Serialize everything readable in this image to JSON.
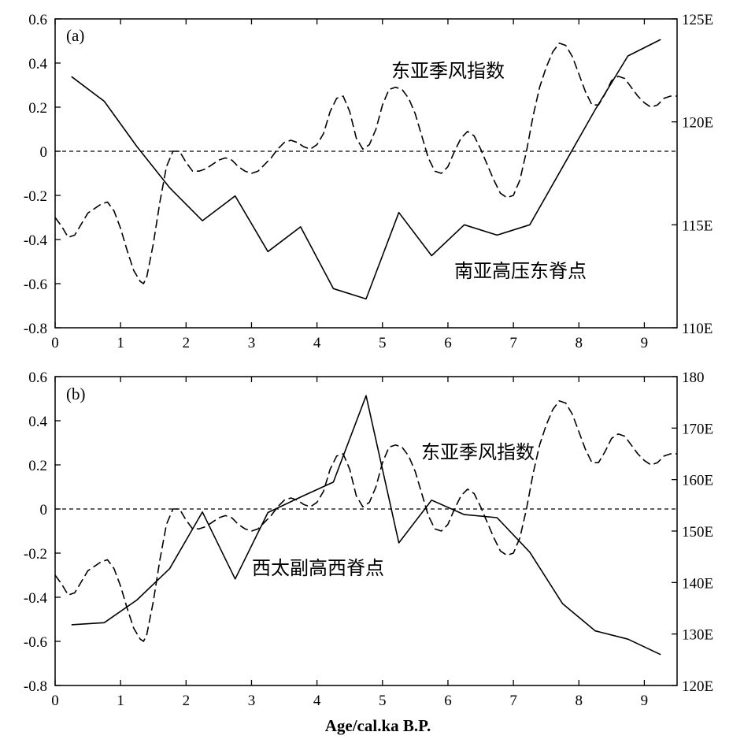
{
  "chart_data": [
    {
      "type": "line",
      "panel_label": "(a)",
      "x_ticks": [
        "0",
        "1",
        "2",
        "3",
        "4",
        "5",
        "6",
        "7",
        "8",
        "9"
      ],
      "xlim": [
        0,
        9.5
      ],
      "y_left_ticks": [
        "0.6",
        "0.4",
        "0.2",
        "0",
        "-0.2",
        "-0.4",
        "-0.6",
        "-0.8"
      ],
      "ylim_left": [
        -0.8,
        0.6
      ],
      "y_right_ticks": [
        "125E",
        "120E",
        "115E",
        "110E"
      ],
      "ylim_right": [
        110,
        125
      ],
      "zero_line": "dashed",
      "series": [
        {
          "name": "东亚季风指数",
          "axis": "left",
          "style": "dashed",
          "x": [
            0.0,
            0.1,
            0.2,
            0.3,
            0.4,
            0.5,
            0.6,
            0.7,
            0.8,
            0.9,
            1.0,
            1.1,
            1.2,
            1.3,
            1.35,
            1.4,
            1.5,
            1.6,
            1.7,
            1.8,
            1.9,
            2.0,
            2.1,
            2.2,
            2.3,
            2.4,
            2.5,
            2.6,
            2.7,
            2.8,
            2.9,
            3.0,
            3.1,
            3.2,
            3.3,
            3.4,
            3.5,
            3.6,
            3.7,
            3.8,
            3.9,
            4.0,
            4.1,
            4.2,
            4.3,
            4.4,
            4.5,
            4.6,
            4.7,
            4.8,
            4.9,
            5.0,
            5.1,
            5.2,
            5.3,
            5.4,
            5.5,
            5.6,
            5.7,
            5.8,
            5.9,
            6.0,
            6.1,
            6.2,
            6.3,
            6.4,
            6.5,
            6.6,
            6.7,
            6.8,
            6.9,
            7.0,
            7.1,
            7.2,
            7.3,
            7.4,
            7.5,
            7.6,
            7.7,
            7.8,
            7.9,
            8.0,
            8.1,
            8.2,
            8.3,
            8.4,
            8.5,
            8.6,
            8.7,
            8.8,
            8.9,
            9.0,
            9.1,
            9.2,
            9.3,
            9.4,
            9.5
          ],
          "y": [
            -0.3,
            -0.34,
            -0.39,
            -0.38,
            -0.33,
            -0.28,
            -0.26,
            -0.24,
            -0.23,
            -0.27,
            -0.35,
            -0.45,
            -0.54,
            -0.59,
            -0.6,
            -0.57,
            -0.42,
            -0.23,
            -0.07,
            0.0,
            0.0,
            -0.05,
            -0.09,
            -0.09,
            -0.08,
            -0.06,
            -0.04,
            -0.03,
            -0.04,
            -0.07,
            -0.09,
            -0.1,
            -0.09,
            -0.06,
            -0.03,
            0.01,
            0.04,
            0.05,
            0.04,
            0.02,
            0.01,
            0.03,
            0.08,
            0.18,
            0.24,
            0.25,
            0.18,
            0.06,
            0.01,
            0.03,
            0.1,
            0.21,
            0.28,
            0.29,
            0.28,
            0.24,
            0.17,
            0.07,
            -0.03,
            -0.09,
            -0.1,
            -0.07,
            0.0,
            0.06,
            0.09,
            0.07,
            0.01,
            -0.06,
            -0.13,
            -0.19,
            -0.21,
            -0.2,
            -0.13,
            0.0,
            0.16,
            0.29,
            0.38,
            0.45,
            0.49,
            0.48,
            0.43,
            0.35,
            0.27,
            0.21,
            0.21,
            0.26,
            0.32,
            0.34,
            0.33,
            0.29,
            0.25,
            0.22,
            0.2,
            0.21,
            0.24,
            0.25,
            0.25
          ]
        },
        {
          "name": "南亚高压东脊点",
          "axis": "right",
          "style": "solid",
          "x": [
            0.25,
            0.75,
            1.25,
            1.75,
            2.25,
            2.75,
            3.25,
            3.75,
            4.25,
            4.75,
            5.25,
            5.75,
            6.25,
            6.75,
            7.25,
            7.75,
            8.25,
            8.75,
            9.25
          ],
          "y": [
            122.2,
            121.0,
            118.8,
            116.8,
            115.2,
            116.4,
            113.7,
            114.9,
            111.9,
            111.4,
            115.6,
            113.5,
            115.0,
            114.5,
            115.0,
            117.8,
            120.6,
            123.2,
            124.0
          ]
        }
      ]
    },
    {
      "type": "line",
      "panel_label": "(b)",
      "x_ticks": [
        "0",
        "1",
        "2",
        "3",
        "4",
        "5",
        "6",
        "7",
        "8",
        "9"
      ],
      "xlim": [
        0,
        9.5
      ],
      "y_left_ticks": [
        "0.6",
        "0.4",
        "0.2",
        "0",
        "-0.2",
        "-0.4",
        "-0.6",
        "-0.8"
      ],
      "ylim_left": [
        -0.8,
        0.6
      ],
      "y_right_ticks": [
        "180",
        "170E",
        "160E",
        "150E",
        "140E",
        "130E",
        "120E"
      ],
      "ylim_right": [
        120,
        180
      ],
      "zero_line": "dashed",
      "xlabel": "Age/cal.ka B.P.",
      "series": [
        {
          "name": "东亚季风指数",
          "axis": "left",
          "style": "dashed",
          "x": [
            0.0,
            0.1,
            0.2,
            0.3,
            0.4,
            0.5,
            0.6,
            0.7,
            0.8,
            0.9,
            1.0,
            1.1,
            1.2,
            1.3,
            1.35,
            1.4,
            1.5,
            1.6,
            1.7,
            1.8,
            1.9,
            2.0,
            2.1,
            2.2,
            2.3,
            2.4,
            2.5,
            2.6,
            2.7,
            2.8,
            2.9,
            3.0,
            3.1,
            3.2,
            3.3,
            3.4,
            3.5,
            3.6,
            3.7,
            3.8,
            3.9,
            4.0,
            4.1,
            4.2,
            4.3,
            4.4,
            4.5,
            4.6,
            4.7,
            4.8,
            4.9,
            5.0,
            5.1,
            5.2,
            5.3,
            5.4,
            5.5,
            5.6,
            5.7,
            5.8,
            5.9,
            6.0,
            6.1,
            6.2,
            6.3,
            6.4,
            6.5,
            6.6,
            6.7,
            6.8,
            6.9,
            7.0,
            7.1,
            7.2,
            7.3,
            7.4,
            7.5,
            7.6,
            7.7,
            7.8,
            7.9,
            8.0,
            8.1,
            8.2,
            8.3,
            8.4,
            8.5,
            8.6,
            8.7,
            8.8,
            8.9,
            9.0,
            9.1,
            9.2,
            9.3,
            9.4,
            9.5
          ],
          "y": [
            -0.3,
            -0.34,
            -0.39,
            -0.38,
            -0.33,
            -0.28,
            -0.26,
            -0.24,
            -0.23,
            -0.27,
            -0.35,
            -0.45,
            -0.54,
            -0.59,
            -0.6,
            -0.57,
            -0.42,
            -0.23,
            -0.07,
            0.0,
            0.0,
            -0.05,
            -0.09,
            -0.09,
            -0.08,
            -0.06,
            -0.04,
            -0.03,
            -0.04,
            -0.07,
            -0.09,
            -0.1,
            -0.09,
            -0.06,
            -0.03,
            0.01,
            0.04,
            0.05,
            0.04,
            0.02,
            0.01,
            0.03,
            0.08,
            0.18,
            0.24,
            0.25,
            0.18,
            0.06,
            0.01,
            0.03,
            0.1,
            0.21,
            0.28,
            0.29,
            0.28,
            0.24,
            0.17,
            0.07,
            -0.03,
            -0.09,
            -0.1,
            -0.07,
            0.0,
            0.06,
            0.09,
            0.07,
            0.01,
            -0.06,
            -0.13,
            -0.19,
            -0.21,
            -0.2,
            -0.13,
            0.0,
            0.16,
            0.29,
            0.38,
            0.45,
            0.49,
            0.48,
            0.43,
            0.35,
            0.27,
            0.21,
            0.21,
            0.26,
            0.32,
            0.34,
            0.33,
            0.29,
            0.25,
            0.22,
            0.2,
            0.21,
            0.24,
            0.25,
            0.25
          ]
        },
        {
          "name": "西太副高西脊点",
          "axis": "right",
          "style": "solid",
          "x": [
            0.25,
            0.75,
            1.25,
            1.75,
            2.25,
            2.75,
            3.25,
            3.75,
            4.25,
            4.75,
            5.25,
            5.75,
            6.25,
            6.75,
            7.25,
            7.75,
            8.25,
            8.75,
            9.25
          ],
          "y": [
            131.8,
            132.2,
            136.6,
            142.7,
            153.7,
            140.7,
            153.6,
            156.6,
            159.5,
            176.3,
            147.7,
            156.0,
            153.2,
            152.6,
            145.9,
            135.9,
            130.6,
            129.0,
            126.0
          ]
        }
      ]
    }
  ]
}
